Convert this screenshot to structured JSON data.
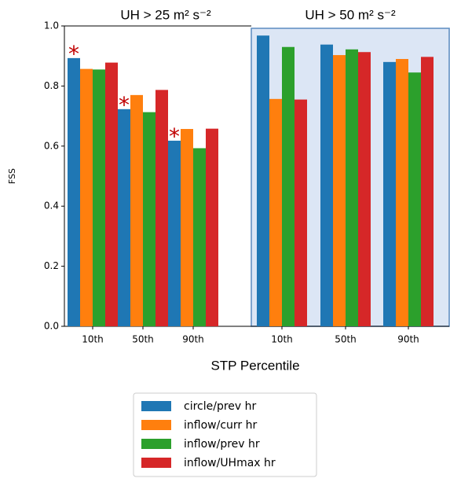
{
  "chart_data": {
    "type": "bar",
    "panels": [
      {
        "title": "UH > 25 m² s⁻²"
      },
      {
        "title": "UH > 50 m² s⁻²"
      }
    ],
    "panel_highlight_color": "#dce6f5",
    "categories": [
      "10th",
      "50th",
      "90th",
      "10th",
      "50th",
      "90th"
    ],
    "x_label": "STP Percentile",
    "y_label": "FSS",
    "ylim": [
      0,
      1
    ],
    "yticks": [
      {
        "value": 0,
        "label": "0.0"
      },
      {
        "value": 0.2,
        "label": "0.2"
      },
      {
        "value": 0.4,
        "label": "0.4"
      },
      {
        "value": 0.6,
        "label": "0.6"
      },
      {
        "value": 0.8,
        "label": "0.8"
      },
      {
        "value": 1,
        "label": "1.0"
      }
    ],
    "series": [
      {
        "name": "circle/prev hr",
        "color": "#1f77b4",
        "values": [
          0.893,
          0.723,
          0.618,
          0.968,
          0.938,
          0.88
        ]
      },
      {
        "name": "inflow/curr hr",
        "color": "#ff7f0e",
        "values": [
          0.857,
          0.77,
          0.657,
          0.757,
          0.903,
          0.89
        ]
      },
      {
        "name": "inflow/prev hr",
        "color": "#2ca02c",
        "values": [
          0.855,
          0.713,
          0.593,
          0.93,
          0.922,
          0.845
        ]
      },
      {
        "name": "inflow/UHmax hr",
        "color": "#d62728",
        "values": [
          0.878,
          0.787,
          0.658,
          0.755,
          0.913,
          0.897
        ]
      }
    ],
    "annotations": [
      {
        "text": "*",
        "series": 0,
        "point": 0
      },
      {
        "text": "*",
        "series": 0,
        "point": 1
      },
      {
        "text": "*",
        "series": 0,
        "point": 2
      }
    ],
    "annotation_color": "#c00000",
    "legend": "bottom"
  }
}
